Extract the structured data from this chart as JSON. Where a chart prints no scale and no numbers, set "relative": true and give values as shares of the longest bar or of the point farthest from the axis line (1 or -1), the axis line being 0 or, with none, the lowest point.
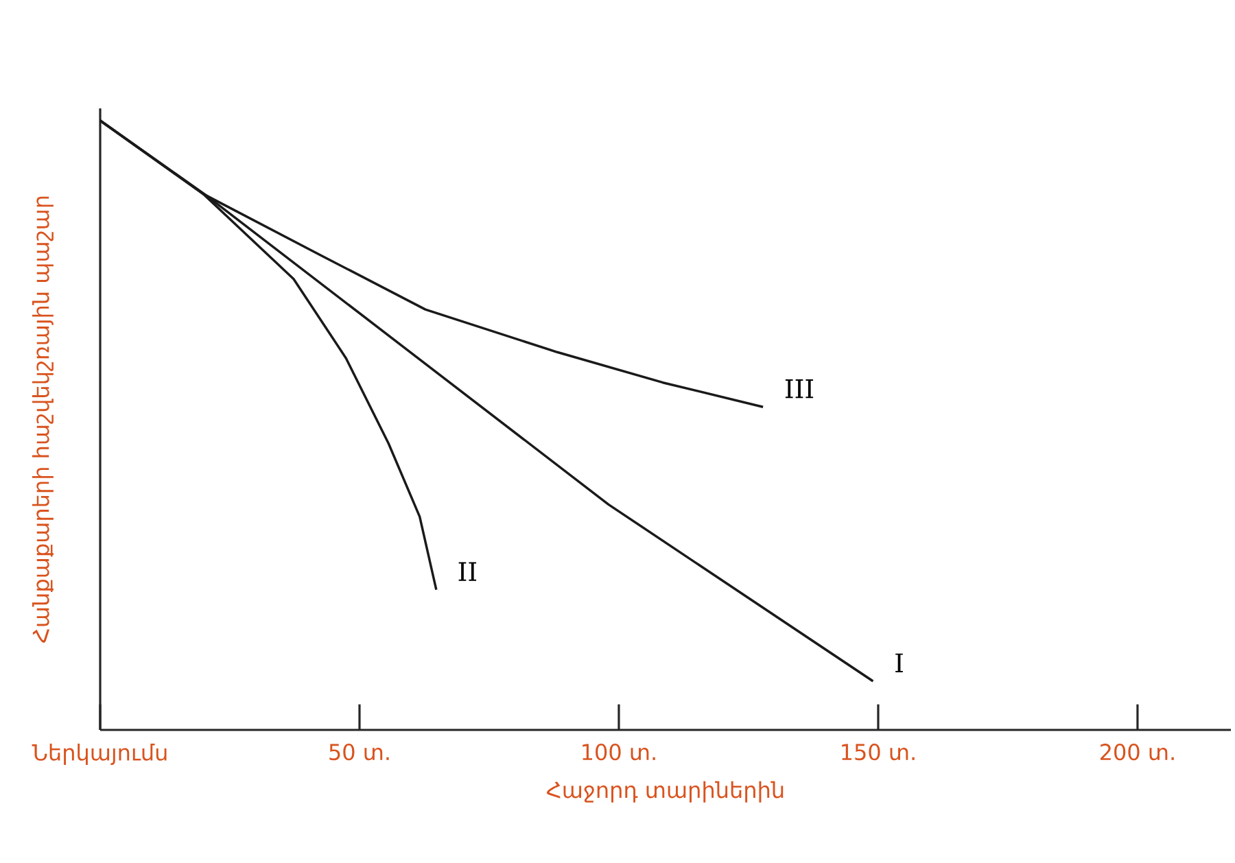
{
  "chart_data": {
    "type": "line",
    "relative": true,
    "xlabel": "Հաջորդ տարիներին",
    "ylabel": "Հանքաքարերի հաշվեկշռային պաշար",
    "xlim": [
      0,
      218
    ],
    "xticks": [
      {
        "value": 0,
        "label": "Ներկայումս"
      },
      {
        "value": 50,
        "label": "50 տ."
      },
      {
        "value": 100,
        "label": "100 տ."
      },
      {
        "value": 150,
        "label": "150 տ."
      },
      {
        "value": 200,
        "label": "200 տ."
      }
    ],
    "series": [
      {
        "name": "I",
        "color": "#1a1a1a",
        "x": [
          0,
          20,
          98,
          149
        ],
        "values": [
          1,
          0.88,
          0.37,
          0.08
        ]
      },
      {
        "name": "II",
        "color": "#1a1a1a",
        "x": [
          0,
          19.8,
          37.3,
          47.4,
          55.6,
          61.6,
          64.8
        ],
        "values": [
          1,
          0.88,
          0.74,
          0.61,
          0.47,
          0.35,
          0.23
        ]
      },
      {
        "name": "III",
        "color": "#1a1a1a",
        "x": [
          0,
          19.8,
          42.3,
          62.7,
          88.1,
          108.5,
          127.8
        ],
        "values": [
          1,
          0.88,
          0.78,
          0.69,
          0.62,
          0.57,
          0.53
        ]
      }
    ]
  }
}
